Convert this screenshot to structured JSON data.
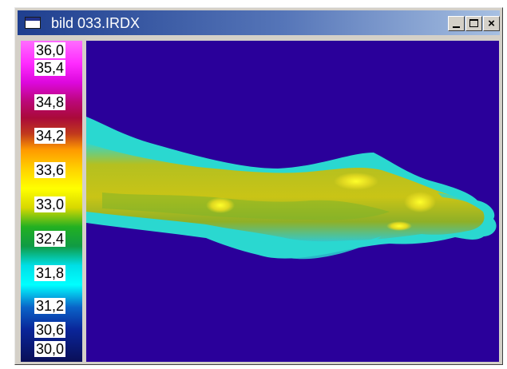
{
  "window": {
    "title": "bild 033.IRDX",
    "controls": {
      "minimize": "minimize",
      "maximize": "maximize",
      "close": "×"
    }
  },
  "color_scale": {
    "labels": [
      "36,0",
      "35,4",
      "34,8",
      "34,2",
      "33,6",
      "33,0",
      "32,4",
      "31,8",
      "31,2",
      "30,6",
      "30,0"
    ],
    "min_value": 30.0,
    "max_value": 36.0,
    "colors": [
      "#ff6cff",
      "#dd08dd",
      "#aa0a3a",
      "#ff9a00",
      "#ffff00",
      "#22b022",
      "#00ffff",
      "#0a2599",
      "#0a0f57"
    ]
  },
  "thermal_image": {
    "subject": "forearm-and-hand-thermogram",
    "background_color": "#2a009a"
  }
}
